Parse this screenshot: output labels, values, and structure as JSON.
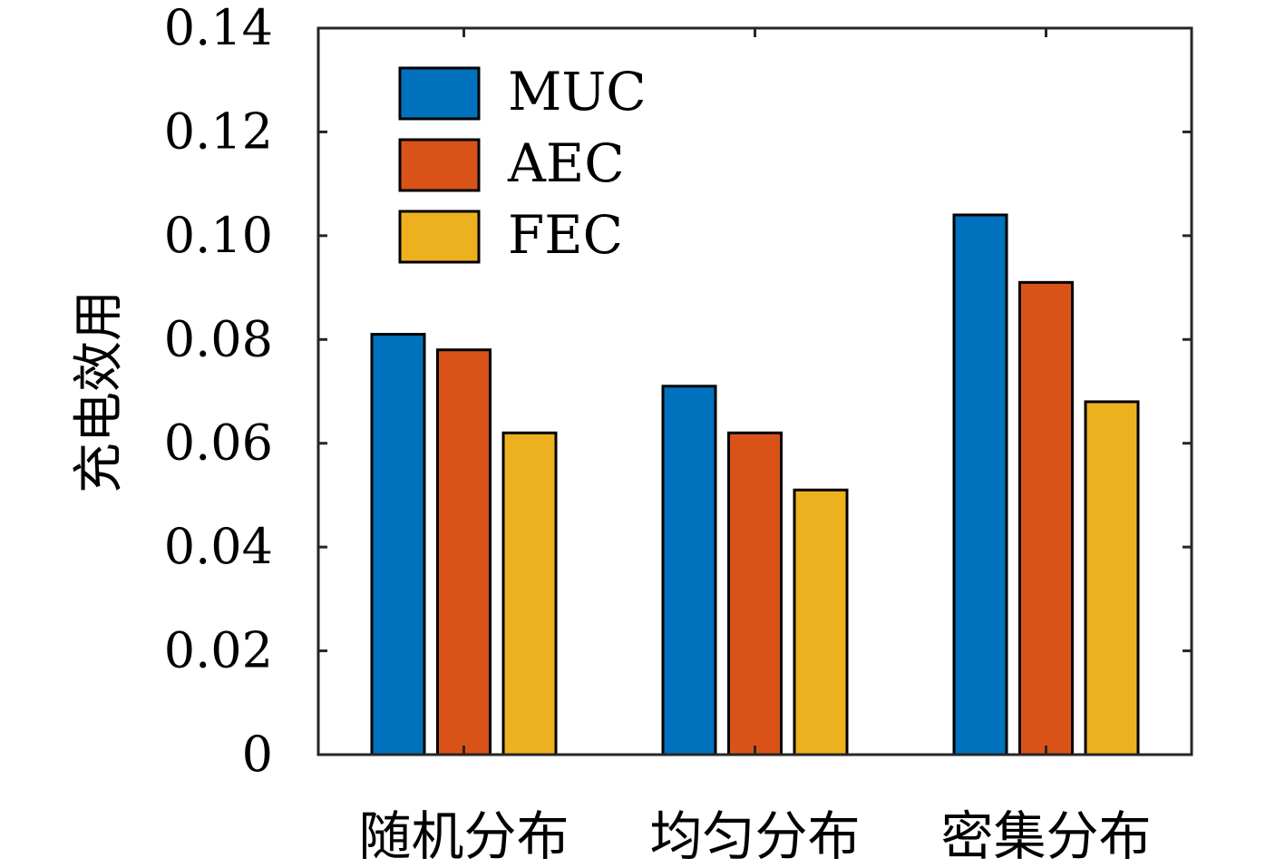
{
  "chart_data": {
    "type": "bar",
    "categories": [
      "随机分布",
      "均匀分布",
      "密集分布"
    ],
    "series": [
      {
        "name": "MUC",
        "color": "#0072BD",
        "values": [
          0.081,
          0.071,
          0.104
        ]
      },
      {
        "name": "AEC",
        "color": "#D95319",
        "values": [
          0.078,
          0.062,
          0.091
        ]
      },
      {
        "name": "FEC",
        "color": "#EDB120",
        "values": [
          0.062,
          0.051,
          0.068
        ]
      }
    ],
    "ylabel": "充电效用",
    "ylim": [
      0,
      0.14
    ],
    "yticks": [
      "0",
      "0.02",
      "0.04",
      "0.06",
      "0.08",
      "0.10",
      "0.12",
      "0.14"
    ],
    "ytick_values": [
      0,
      0.02,
      0.04,
      0.06,
      0.08,
      0.1,
      0.12,
      0.14
    ],
    "legend_position": "top-left",
    "grid": false
  }
}
